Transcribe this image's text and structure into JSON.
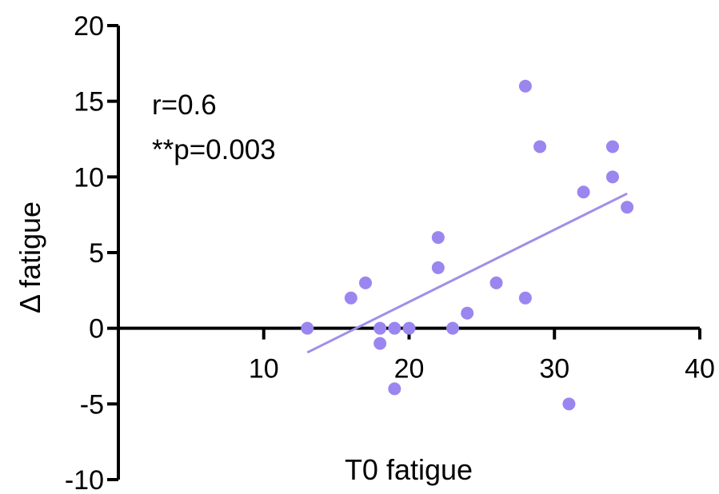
{
  "chart_data": {
    "type": "scatter",
    "title": "",
    "xlabel": "T0 fatigue",
    "ylabel": "Δ fatigue",
    "xlim": [
      0,
      40
    ],
    "ylim": [
      -10,
      20
    ],
    "xticks": [
      10,
      20,
      30,
      40
    ],
    "yticks": [
      -10,
      -5,
      0,
      5,
      10,
      15,
      20
    ],
    "grid": false,
    "legend": "none",
    "point_color": "#9b86f0",
    "line_color": "#a18ee8",
    "annotations": [
      "r=0.6",
      "**p=0.003"
    ],
    "series": [
      {
        "points": [
          {
            "x": 13,
            "y": 0
          },
          {
            "x": 16,
            "y": 2
          },
          {
            "x": 17,
            "y": 3
          },
          {
            "x": 18,
            "y": 0
          },
          {
            "x": 18,
            "y": -1
          },
          {
            "x": 19,
            "y": 0
          },
          {
            "x": 19,
            "y": -4
          },
          {
            "x": 20,
            "y": 0
          },
          {
            "x": 22,
            "y": 6
          },
          {
            "x": 22,
            "y": 4
          },
          {
            "x": 23,
            "y": 0
          },
          {
            "x": 24,
            "y": 1
          },
          {
            "x": 26,
            "y": 3
          },
          {
            "x": 28,
            "y": 16
          },
          {
            "x": 28,
            "y": 2
          },
          {
            "x": 29,
            "y": 12
          },
          {
            "x": 31,
            "y": -5
          },
          {
            "x": 32,
            "y": 9
          },
          {
            "x": 34,
            "y": 12
          },
          {
            "x": 34,
            "y": 10
          },
          {
            "x": 35,
            "y": 8
          }
        ]
      }
    ],
    "trendline": {
      "x": [
        13,
        35
      ],
      "y": [
        -1.6,
        8.9
      ]
    }
  }
}
